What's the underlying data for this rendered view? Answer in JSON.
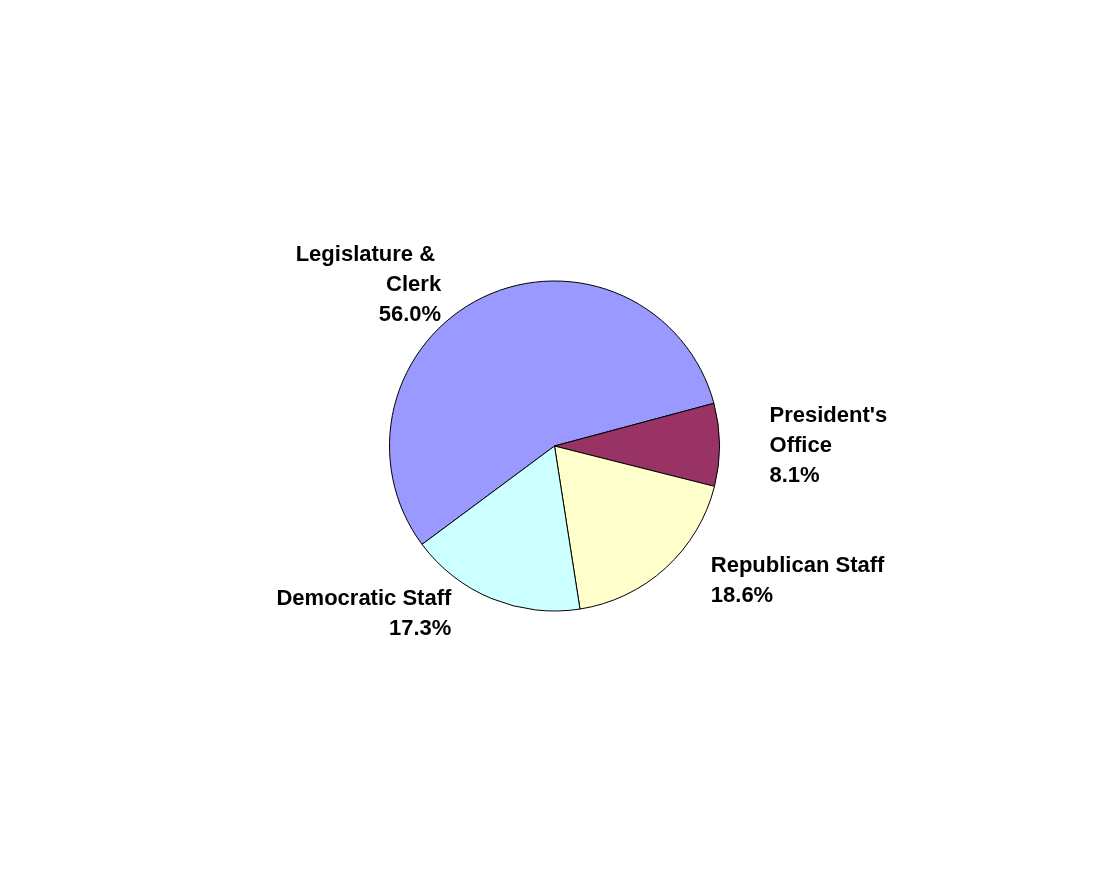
{
  "chart_data": {
    "type": "pie",
    "categories": [
      "Legislature & Clerk",
      "President's Office",
      "Republican Staff",
      "Democratic Staff"
    ],
    "values": [
      56.0,
      8.1,
      18.6,
      17.3
    ],
    "value_labels": [
      "56.0%",
      "8.1%",
      "18.6%",
      "17.3%"
    ],
    "colors": [
      "#9999ff",
      "#993366",
      "#ffffcc",
      "#ccffff"
    ],
    "legend": false
  }
}
